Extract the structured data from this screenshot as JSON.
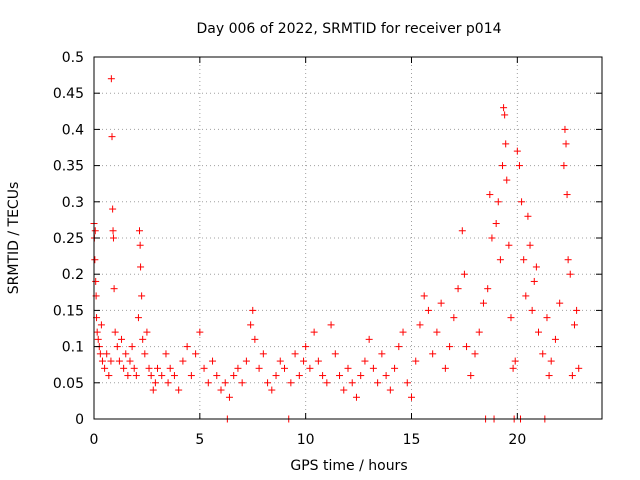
{
  "chart_data": {
    "type": "scatter",
    "title": "Day 006 of 2022, SRMTID for receiver p014",
    "xlabel": "GPS time / hours",
    "ylabel": "SRMTID / TECUs",
    "xlim": [
      0,
      24
    ],
    "ylim": [
      0,
      0.5
    ],
    "x_ticks": [
      0,
      5,
      10,
      15,
      20
    ],
    "x_tick_labels": [
      "0",
      "5",
      "10",
      "15",
      "20"
    ],
    "y_ticks": [
      0,
      0.05,
      0.1,
      0.15,
      0.2,
      0.25,
      0.3,
      0.35,
      0.4,
      0.45,
      0.5
    ],
    "y_tick_labels": [
      "0",
      "0.05",
      "0.1",
      "0.15",
      "0.2",
      "0.25",
      "0.3",
      "0.35",
      "0.4",
      "0.45",
      "0.5"
    ],
    "grid": true,
    "marker": "+",
    "color": "#ff0000",
    "series": [
      {
        "name": "SRMTID",
        "points": [
          [
            0.0,
            0.27
          ],
          [
            0.02,
            0.25
          ],
          [
            0.04,
            0.22
          ],
          [
            0.06,
            0.26
          ],
          [
            0.08,
            0.19
          ],
          [
            0.1,
            0.17
          ],
          [
            0.12,
            0.14
          ],
          [
            0.15,
            0.12
          ],
          [
            0.2,
            0.11
          ],
          [
            0.25,
            0.1
          ],
          [
            0.3,
            0.09
          ],
          [
            0.35,
            0.13
          ],
          [
            0.4,
            0.08
          ],
          [
            0.5,
            0.07
          ],
          [
            0.6,
            0.09
          ],
          [
            0.7,
            0.06
          ],
          [
            0.8,
            0.08
          ],
          [
            0.82,
            0.47
          ],
          [
            0.85,
            0.39
          ],
          [
            0.88,
            0.29
          ],
          [
            0.9,
            0.26
          ],
          [
            0.92,
            0.25
          ],
          [
            0.95,
            0.18
          ],
          [
            1.0,
            0.12
          ],
          [
            1.1,
            0.1
          ],
          [
            1.2,
            0.08
          ],
          [
            1.3,
            0.11
          ],
          [
            1.4,
            0.07
          ],
          [
            1.5,
            0.09
          ],
          [
            1.6,
            0.06
          ],
          [
            1.7,
            0.08
          ],
          [
            1.8,
            0.1
          ],
          [
            1.9,
            0.07
          ],
          [
            2.0,
            0.06
          ],
          [
            2.1,
            0.14
          ],
          [
            2.15,
            0.26
          ],
          [
            2.18,
            0.24
          ],
          [
            2.2,
            0.21
          ],
          [
            2.25,
            0.17
          ],
          [
            2.3,
            0.11
          ],
          [
            2.4,
            0.09
          ],
          [
            2.5,
            0.12
          ],
          [
            2.6,
            0.07
          ],
          [
            2.7,
            0.06
          ],
          [
            2.8,
            0.04
          ],
          [
            2.9,
            0.05
          ],
          [
            3.0,
            0.07
          ],
          [
            3.2,
            0.06
          ],
          [
            3.4,
            0.09
          ],
          [
            3.5,
            0.05
          ],
          [
            3.6,
            0.07
          ],
          [
            3.8,
            0.06
          ],
          [
            4.0,
            0.04
          ],
          [
            4.2,
            0.08
          ],
          [
            4.4,
            0.1
          ],
          [
            4.6,
            0.06
          ],
          [
            4.8,
            0.09
          ],
          [
            5.0,
            0.12
          ],
          [
            5.2,
            0.07
          ],
          [
            5.4,
            0.05
          ],
          [
            5.6,
            0.08
          ],
          [
            5.8,
            0.06
          ],
          [
            6.0,
            0.04
          ],
          [
            6.2,
            0.05
          ],
          [
            6.3,
            0.0
          ],
          [
            6.4,
            0.03
          ],
          [
            6.6,
            0.06
          ],
          [
            6.8,
            0.07
          ],
          [
            7.0,
            0.05
          ],
          [
            7.2,
            0.08
          ],
          [
            7.4,
            0.13
          ],
          [
            7.5,
            0.15
          ],
          [
            7.6,
            0.11
          ],
          [
            7.8,
            0.07
          ],
          [
            8.0,
            0.09
          ],
          [
            8.2,
            0.05
          ],
          [
            8.4,
            0.04
          ],
          [
            8.6,
            0.06
          ],
          [
            8.8,
            0.08
          ],
          [
            9.0,
            0.07
          ],
          [
            9.2,
            0.0
          ],
          [
            9.3,
            0.05
          ],
          [
            9.5,
            0.09
          ],
          [
            9.7,
            0.06
          ],
          [
            9.9,
            0.08
          ],
          [
            10.0,
            0.1
          ],
          [
            10.2,
            0.07
          ],
          [
            10.4,
            0.12
          ],
          [
            10.6,
            0.08
          ],
          [
            10.8,
            0.06
          ],
          [
            11.0,
            0.05
          ],
          [
            11.2,
            0.13
          ],
          [
            11.4,
            0.09
          ],
          [
            11.6,
            0.06
          ],
          [
            11.8,
            0.04
          ],
          [
            12.0,
            0.07
          ],
          [
            12.2,
            0.05
          ],
          [
            12.4,
            0.03
          ],
          [
            12.6,
            0.06
          ],
          [
            12.8,
            0.08
          ],
          [
            13.0,
            0.11
          ],
          [
            13.2,
            0.07
          ],
          [
            13.4,
            0.05
          ],
          [
            13.6,
            0.09
          ],
          [
            13.8,
            0.06
          ],
          [
            14.0,
            0.04
          ],
          [
            14.2,
            0.07
          ],
          [
            14.4,
            0.1
          ],
          [
            14.6,
            0.12
          ],
          [
            14.8,
            0.05
          ],
          [
            15.0,
            0.03
          ],
          [
            15.2,
            0.08
          ],
          [
            15.4,
            0.13
          ],
          [
            15.6,
            0.17
          ],
          [
            15.8,
            0.15
          ],
          [
            16.0,
            0.09
          ],
          [
            16.2,
            0.12
          ],
          [
            16.4,
            0.16
          ],
          [
            16.6,
            0.07
          ],
          [
            16.8,
            0.1
          ],
          [
            17.0,
            0.14
          ],
          [
            17.2,
            0.18
          ],
          [
            17.4,
            0.26
          ],
          [
            17.5,
            0.2
          ],
          [
            17.6,
            0.1
          ],
          [
            17.8,
            0.06
          ],
          [
            18.0,
            0.09
          ],
          [
            18.2,
            0.12
          ],
          [
            18.4,
            0.16
          ],
          [
            18.5,
            0.0
          ],
          [
            18.6,
            0.18
          ],
          [
            18.7,
            0.31
          ],
          [
            18.8,
            0.25
          ],
          [
            18.9,
            0.0
          ],
          [
            19.0,
            0.27
          ],
          [
            19.1,
            0.3
          ],
          [
            19.2,
            0.22
          ],
          [
            19.3,
            0.35
          ],
          [
            19.35,
            0.43
          ],
          [
            19.4,
            0.42
          ],
          [
            19.45,
            0.38
          ],
          [
            19.5,
            0.33
          ],
          [
            19.6,
            0.24
          ],
          [
            19.7,
            0.14
          ],
          [
            19.8,
            0.07
          ],
          [
            19.85,
            0.0
          ],
          [
            19.9,
            0.08
          ],
          [
            20.0,
            0.37
          ],
          [
            20.1,
            0.35
          ],
          [
            20.15,
            0.0
          ],
          [
            20.2,
            0.3
          ],
          [
            20.3,
            0.22
          ],
          [
            20.4,
            0.17
          ],
          [
            20.5,
            0.28
          ],
          [
            20.6,
            0.24
          ],
          [
            20.7,
            0.15
          ],
          [
            20.8,
            0.19
          ],
          [
            20.9,
            0.21
          ],
          [
            21.0,
            0.12
          ],
          [
            21.2,
            0.09
          ],
          [
            21.3,
            0.0
          ],
          [
            21.4,
            0.14
          ],
          [
            21.5,
            0.06
          ],
          [
            21.6,
            0.08
          ],
          [
            21.8,
            0.11
          ],
          [
            22.0,
            0.16
          ],
          [
            22.2,
            0.35
          ],
          [
            22.25,
            0.4
          ],
          [
            22.3,
            0.38
          ],
          [
            22.35,
            0.31
          ],
          [
            22.4,
            0.22
          ],
          [
            22.5,
            0.2
          ],
          [
            22.6,
            0.06
          ],
          [
            22.7,
            0.13
          ],
          [
            22.8,
            0.15
          ],
          [
            22.9,
            0.07
          ]
        ]
      }
    ]
  }
}
